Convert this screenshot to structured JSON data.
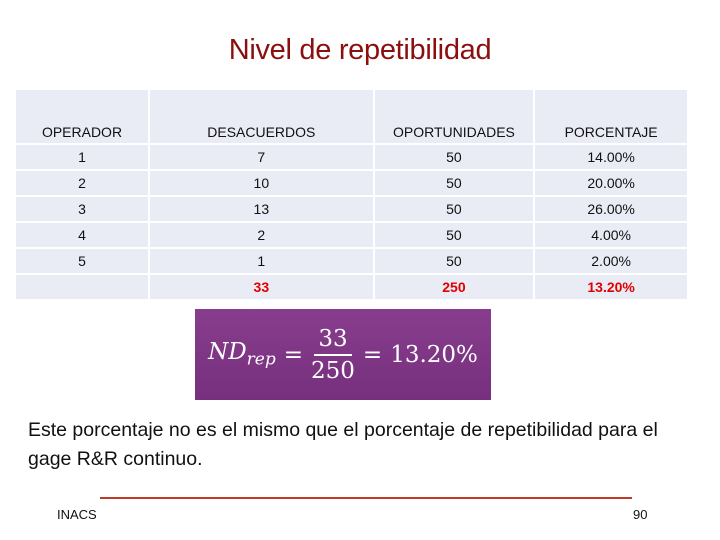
{
  "title": "Nivel de repetibilidad",
  "table": {
    "headers": [
      "OPERADOR",
      "DESACUERDOS",
      "OPORTUNIDADES",
      "PORCENTAJE"
    ],
    "rows": [
      [
        "1",
        "7",
        "50",
        "14.00%"
      ],
      [
        "2",
        "10",
        "50",
        "20.00%"
      ],
      [
        "3",
        "13",
        "50",
        "26.00%"
      ],
      [
        "4",
        "2",
        "50",
        "4.00%"
      ],
      [
        "5",
        "1",
        "50",
        "2.00%"
      ]
    ],
    "total": [
      "",
      "33",
      "250",
      "13.20%"
    ],
    "total_color": "#e00000"
  },
  "formula": {
    "lhs_main": "ND",
    "lhs_sub": "rep",
    "eq": "=",
    "numerator": "33",
    "denominator": "250",
    "eq2": "=",
    "result": "13.20%",
    "background": "#7f3786"
  },
  "paragraph": "Este porcentaje no es el mismo que el porcentaje de repetibilidad para el gage R&R continuo.",
  "footer": {
    "left": "INACS",
    "page": "90"
  }
}
